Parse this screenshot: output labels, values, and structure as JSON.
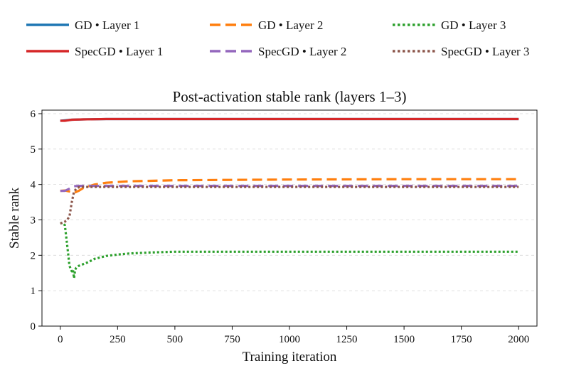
{
  "chart_data": {
    "type": "line",
    "title": "Post-activation stable rank (layers 1–3)",
    "xlabel": "Training iteration",
    "ylabel": "Stable rank",
    "xlim": [
      -80,
      2080
    ],
    "ylim": [
      0,
      6.1
    ],
    "xticks": [
      0,
      250,
      500,
      750,
      1000,
      1250,
      1500,
      1750,
      2000
    ],
    "yticks": [
      0,
      1,
      2,
      3,
      4,
      5,
      6
    ],
    "grid": "y-dashed",
    "legend_position": "top",
    "series": [
      {
        "name": "GD • Layer 1",
        "color": "#1f77b4",
        "style": "solid",
        "x": [
          0,
          50,
          100,
          200,
          500,
          1000,
          2000
        ],
        "y": [
          5.8,
          5.83,
          5.84,
          5.85,
          5.85,
          5.85,
          5.85
        ]
      },
      {
        "name": "GD • Layer 2",
        "color": "#ff7f0e",
        "style": "dashed",
        "x": [
          0,
          20,
          40,
          60,
          80,
          100,
          150,
          200,
          300,
          500,
          750,
          1000,
          1500,
          2000
        ],
        "y": [
          3.82,
          3.83,
          3.8,
          3.76,
          3.82,
          3.9,
          4.0,
          4.05,
          4.09,
          4.12,
          4.13,
          4.14,
          4.15,
          4.15
        ]
      },
      {
        "name": "GD • Layer 3",
        "color": "#2ca02c",
        "style": "dotted",
        "x": [
          0,
          10,
          20,
          30,
          40,
          50,
          55,
          60,
          65,
          70,
          80,
          100,
          120,
          150,
          200,
          250,
          300,
          400,
          500,
          750,
          1000,
          1500,
          2000
        ],
        "y": [
          2.9,
          2.92,
          2.85,
          2.3,
          1.7,
          1.55,
          1.6,
          1.35,
          1.6,
          1.65,
          1.7,
          1.75,
          1.8,
          1.9,
          1.98,
          2.02,
          2.05,
          2.08,
          2.1,
          2.1,
          2.1,
          2.1,
          2.1
        ]
      },
      {
        "name": "SpecGD • Layer 1",
        "color": "#d62728",
        "style": "solid",
        "x": [
          0,
          20,
          50,
          100,
          200,
          500,
          1000,
          2000
        ],
        "y": [
          5.8,
          5.8,
          5.83,
          5.84,
          5.85,
          5.85,
          5.85,
          5.85
        ]
      },
      {
        "name": "SpecGD • Layer 2",
        "color": "#9467bd",
        "style": "dashed",
        "x": [
          0,
          20,
          40,
          60,
          80,
          100,
          200,
          500,
          1000,
          2000
        ],
        "y": [
          3.82,
          3.82,
          3.88,
          3.95,
          3.96,
          3.96,
          3.96,
          3.96,
          3.96,
          3.96
        ]
      },
      {
        "name": "SpecGD • Layer 3",
        "color": "#8c564b",
        "style": "dotted",
        "x": [
          0,
          10,
          20,
          30,
          40,
          50,
          60,
          70,
          80,
          100,
          200,
          500,
          1000,
          2000
        ],
        "y": [
          2.9,
          2.92,
          2.95,
          3.0,
          3.1,
          3.5,
          3.8,
          3.88,
          3.92,
          3.93,
          3.93,
          3.93,
          3.93,
          3.93
        ]
      }
    ]
  }
}
